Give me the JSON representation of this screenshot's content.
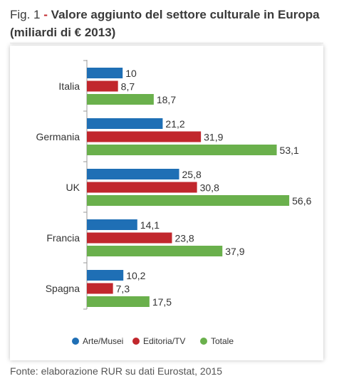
{
  "header": {
    "fig_label": "Fig. 1",
    "separator": "-",
    "title": "Valore aggiunto del settore culturale in Europa (miliardi di € 2013)"
  },
  "source": "Fonte: elaborazione RUR su dati Eurostat, 2015",
  "chart_data": {
    "type": "bar",
    "orientation": "horizontal",
    "categories": [
      "Italia",
      "Germania",
      "UK",
      "Francia",
      "Spagna"
    ],
    "series": [
      {
        "name": "Arte/Musei",
        "color": "#1f6fb5",
        "values": [
          10,
          21.2,
          25.8,
          14.1,
          10.2
        ],
        "labels": [
          "10",
          "21,2",
          "25,8",
          "14,1",
          "10,2"
        ]
      },
      {
        "name": "Editoria/TV",
        "color": "#c1272d",
        "values": [
          8.7,
          31.9,
          30.8,
          23.8,
          7.3
        ],
        "labels": [
          "8,7",
          "31,9",
          "30,8",
          "23,8",
          "7,3"
        ]
      },
      {
        "name": "Totale",
        "color": "#6ab04c",
        "values": [
          18.7,
          53.1,
          56.6,
          37.9,
          17.5
        ],
        "labels": [
          "18,7",
          "53,1",
          "56,6",
          "37,9",
          "17,5"
        ]
      }
    ],
    "xlim": [
      0,
      60
    ],
    "grid": false,
    "legend_position": "bottom"
  }
}
